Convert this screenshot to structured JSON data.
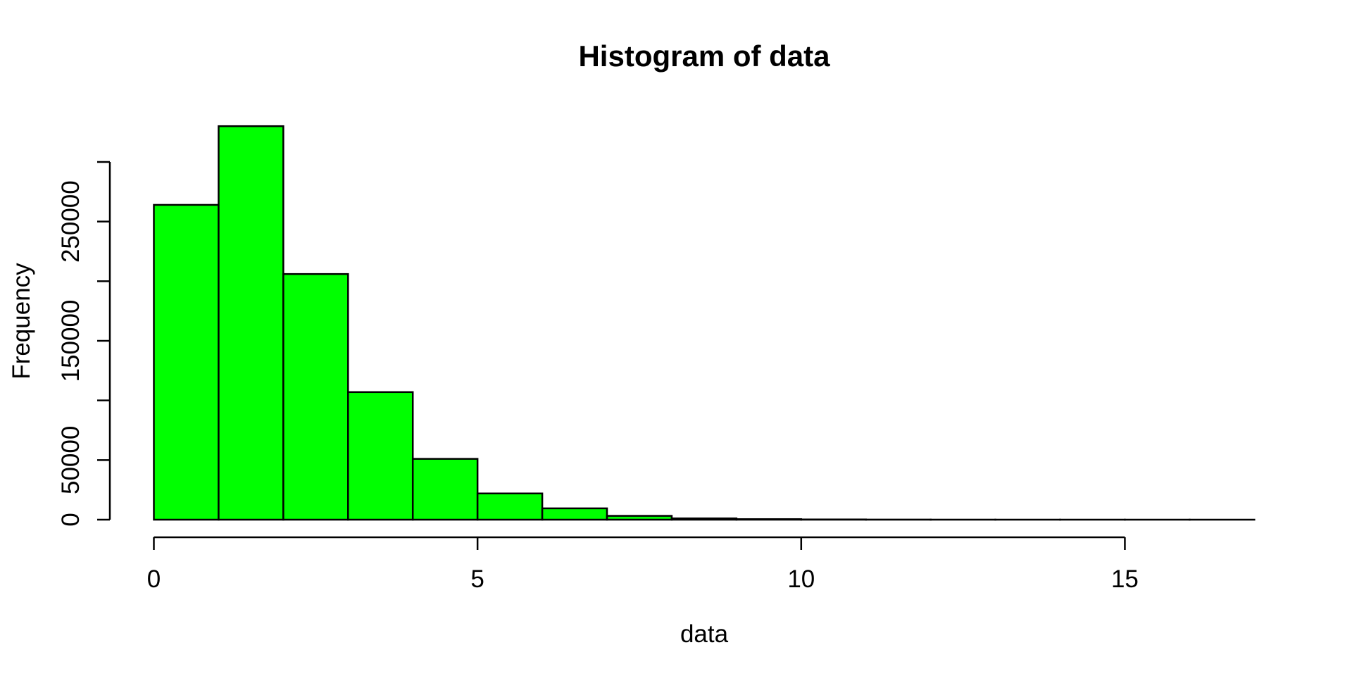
{
  "chart_data": {
    "type": "bar",
    "chart_kind": "histogram",
    "title": "Histogram of data",
    "xlabel": "data",
    "ylabel": "Frequency",
    "bin_edges": [
      0,
      1,
      2,
      3,
      4,
      5,
      6,
      7,
      8,
      9,
      10,
      11,
      12,
      13,
      14,
      15,
      16,
      17
    ],
    "counts": [
      264000,
      330000,
      206000,
      107000,
      51000,
      22000,
      9500,
      3200,
      1100,
      450,
      180,
      70,
      25,
      10,
      4,
      2,
      1
    ],
    "x_ticks": [
      {
        "value": 0,
        "label": "0"
      },
      {
        "value": 5,
        "label": "5"
      },
      {
        "value": 10,
        "label": "10"
      },
      {
        "value": 15,
        "label": "15"
      }
    ],
    "y_ticks": [
      {
        "value": 0,
        "label": "0"
      },
      {
        "value": 50000,
        "label": "50000"
      },
      {
        "value": 100000,
        "label": ""
      },
      {
        "value": 150000,
        "label": "150000"
      },
      {
        "value": 200000,
        "label": ""
      },
      {
        "value": 250000,
        "label": "250000"
      },
      {
        "value": 300000,
        "label": ""
      }
    ],
    "xlim": [
      0,
      17
    ],
    "ylim": [
      0,
      330000
    ],
    "grid": "off",
    "legend": "none",
    "colors": {
      "bar_fill": "#00FF00",
      "bar_stroke": "#000000",
      "axis": "#000000",
      "text": "#000000",
      "background": "#FFFFFF"
    }
  }
}
